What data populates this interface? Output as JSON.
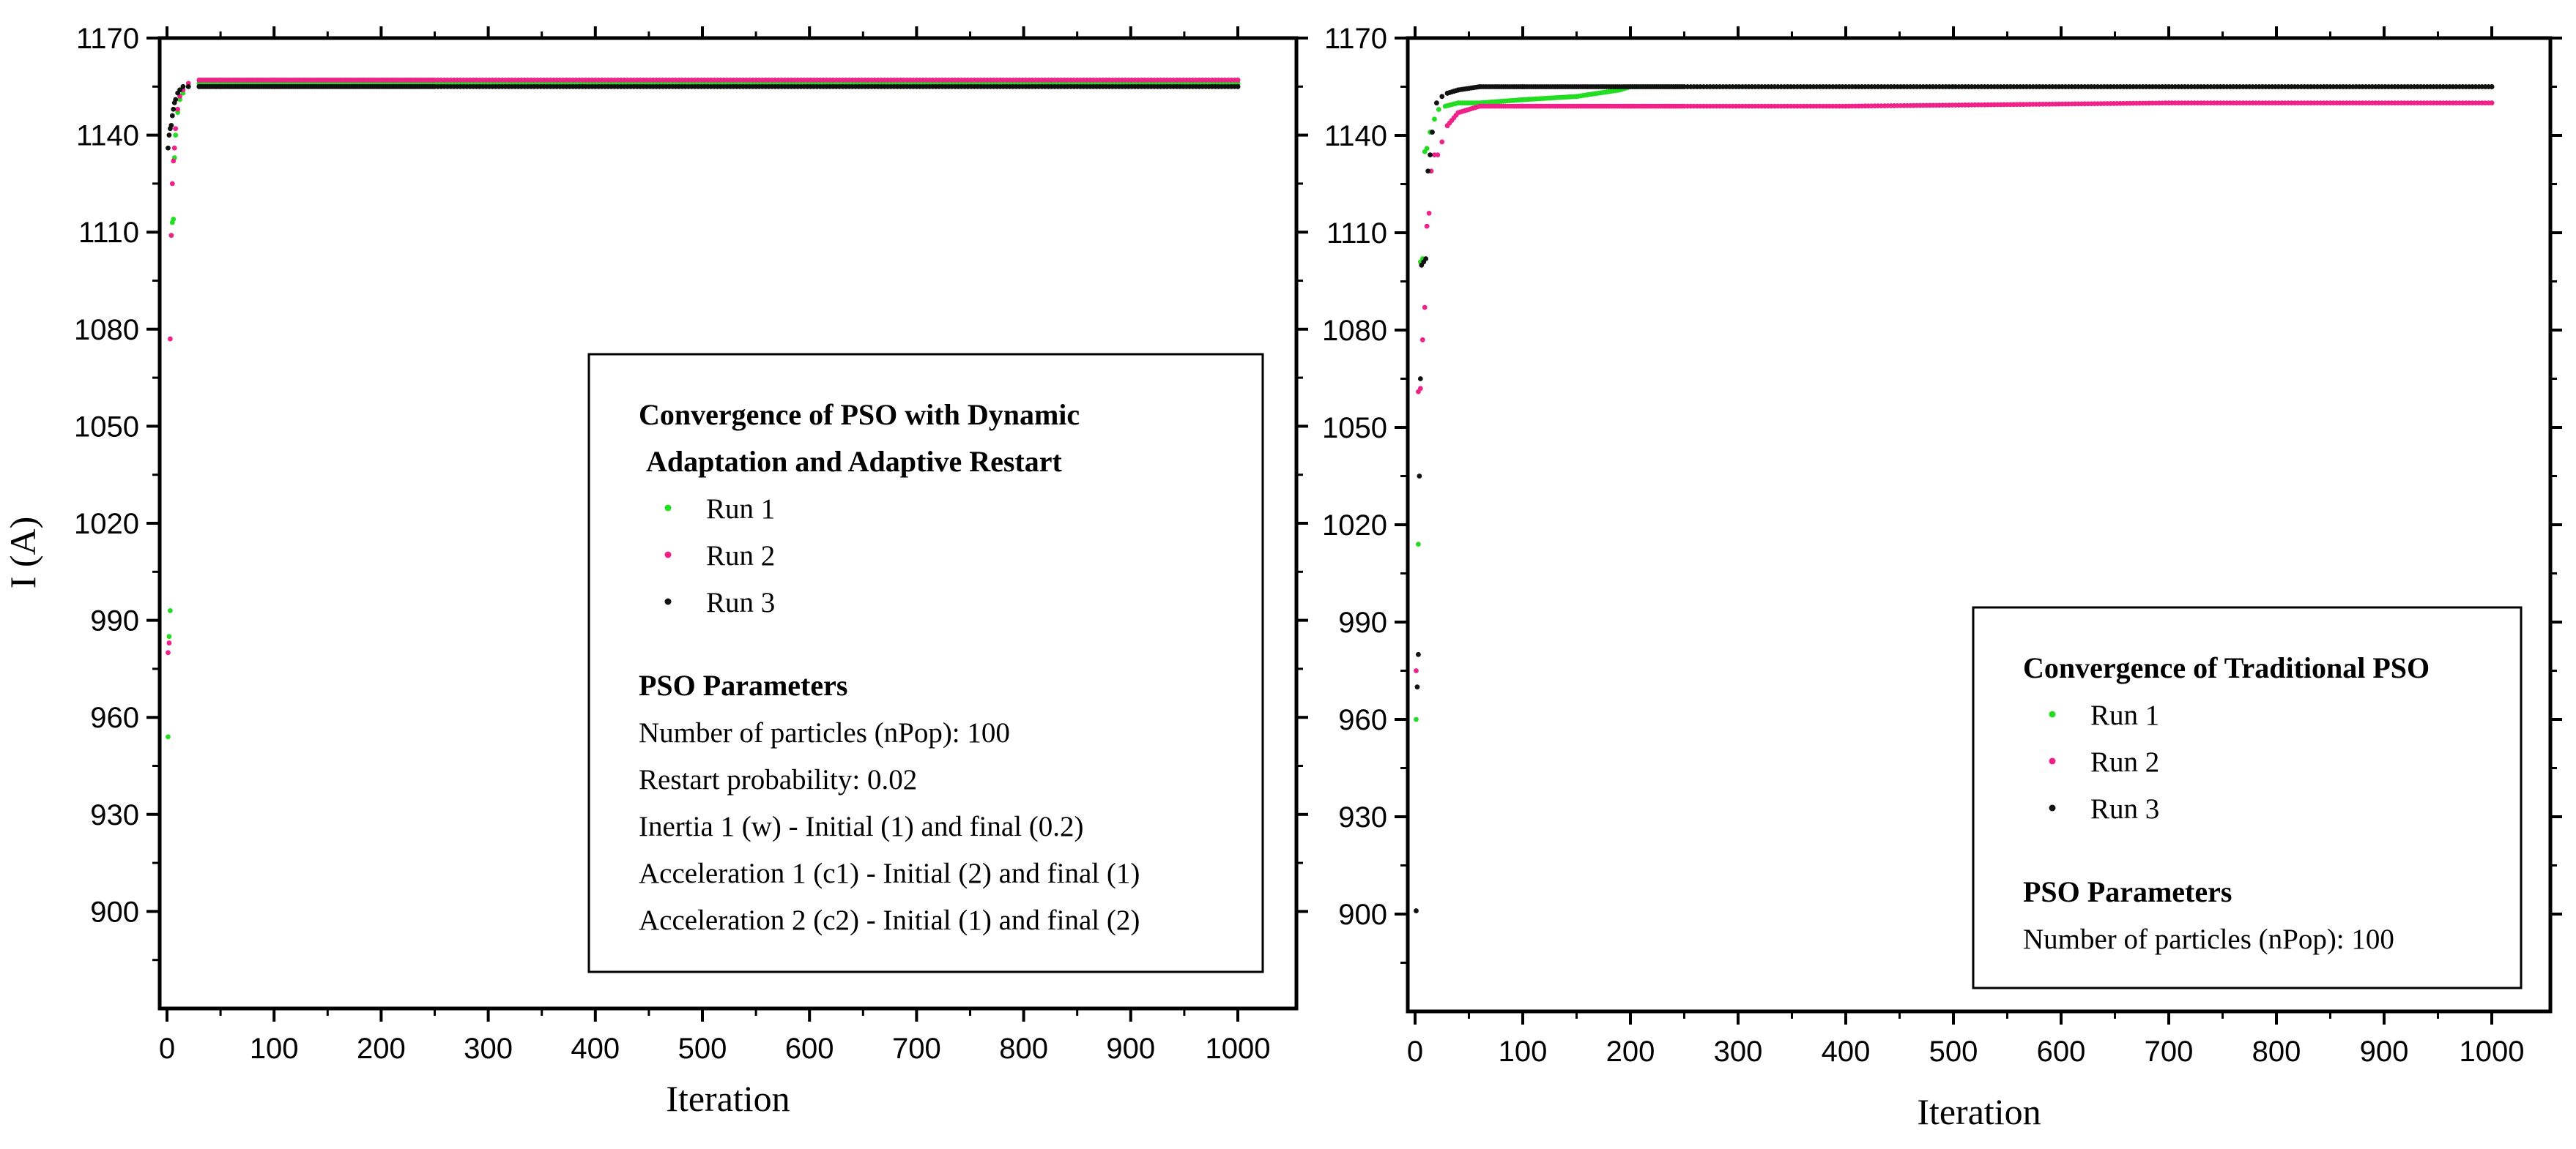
{
  "chart_data": [
    {
      "type": "scatter",
      "xlabel": "Iteration",
      "ylabel": "I (A)",
      "xlim": [
        0,
        1000
      ],
      "ylim": [
        870,
        1170
      ],
      "xticks": [
        "0",
        "100",
        "200",
        "300",
        "400",
        "500",
        "600",
        "700",
        "800",
        "900",
        "1000"
      ],
      "yticks": [
        "900",
        "930",
        "960",
        "990",
        "1020",
        "1050",
        "1080",
        "1110",
        "1140",
        "1170"
      ],
      "legend": {
        "title": [
          "Convergence of PSO with Dynamic",
          "Adaptation  and Adaptive Restart"
        ],
        "params_title": "PSO Parameters",
        "params": [
          "Number of particles (nPop): 100",
          "Restart probability: 0.02",
          "Inertia 1 (w) - Initial (1) and final (0.2)",
          "Acceleration 1 (c1) - Initial (2) and final (1)",
          "Acceleration 2 (c2) - Initial (1) and final (2)"
        ]
      },
      "series": [
        {
          "name": "Run 1",
          "color": "#22dd22",
          "x": [
            1,
            2,
            3,
            4,
            5,
            6,
            7,
            8,
            10,
            12,
            15,
            20,
            30,
            50,
            100,
            1000
          ],
          "y": [
            954,
            985,
            993,
            1109,
            1113,
            1114,
            1133,
            1140,
            1147,
            1151,
            1153,
            1155,
            1156,
            1156,
            1156,
            1156
          ]
        },
        {
          "name": "Run 2",
          "color": "#ee2288",
          "x": [
            1,
            2,
            3,
            4,
            5,
            6,
            7,
            8,
            10,
            12,
            15,
            20,
            30,
            50,
            100,
            1000
          ],
          "y": [
            980,
            983,
            1077,
            1109,
            1125,
            1132,
            1136,
            1142,
            1148,
            1152,
            1154,
            1156,
            1157,
            1157,
            1157,
            1157
          ]
        },
        {
          "name": "Run 3",
          "color": "#111111",
          "x": [
            1,
            2,
            3,
            4,
            5,
            6,
            7,
            8,
            10,
            12,
            15,
            20,
            30,
            50,
            100,
            1000
          ],
          "y": [
            1136,
            1140,
            1142,
            1143,
            1146,
            1148,
            1150,
            1151,
            1153,
            1154,
            1155,
            1155,
            1155,
            1155,
            1155,
            1155
          ]
        }
      ]
    },
    {
      "type": "scatter",
      "xlabel": "Iteration",
      "ylabel": "",
      "xlim": [
        0,
        1000
      ],
      "ylim": [
        870,
        1170
      ],
      "xticks": [
        "0",
        "100",
        "200",
        "300",
        "400",
        "500",
        "600",
        "700",
        "800",
        "900",
        "1000"
      ],
      "yticks": [
        "900",
        "930",
        "960",
        "990",
        "1020",
        "1050",
        "1080",
        "1110",
        "1140",
        "1170"
      ],
      "legend": {
        "title": [
          "Convergence of Traditional PSO"
        ],
        "params_title": "PSO Parameters",
        "params": [
          "Number of particles (nPop): 100"
        ]
      },
      "series": [
        {
          "name": "Run 1",
          "color": "#22dd22",
          "x": [
            1,
            3,
            5,
            7,
            9,
            11,
            14,
            18,
            22,
            28,
            40,
            60,
            100,
            150,
            190,
            200,
            300,
            500,
            1000
          ],
          "y": [
            960,
            1014,
            1101,
            1102,
            1135,
            1136,
            1141,
            1145,
            1148,
            1149,
            1150,
            1150,
            1151,
            1152,
            1154,
            1155,
            1155,
            1155,
            1155
          ]
        },
        {
          "name": "Run 2",
          "color": "#ee2288",
          "x": [
            1,
            3,
            5,
            7,
            9,
            11,
            13,
            15,
            18,
            21,
            25,
            30,
            40,
            60,
            100,
            200,
            400,
            700,
            1000
          ],
          "y": [
            975,
            1061,
            1062,
            1077,
            1087,
            1112,
            1116,
            1129,
            1134,
            1134,
            1138,
            1143,
            1147,
            1149,
            1149,
            1149,
            1149,
            1150,
            1150
          ]
        },
        {
          "name": "Run 3",
          "color": "#111111",
          "x": [
            1,
            2,
            3,
            4,
            5,
            6,
            8,
            10,
            12,
            14,
            16,
            20,
            25,
            30,
            40,
            60,
            100,
            1000
          ],
          "y": [
            901,
            970,
            980,
            1035,
            1065,
            1100,
            1101,
            1102,
            1129,
            1134,
            1141,
            1150,
            1152,
            1153,
            1154,
            1155,
            1155,
            1155
          ]
        }
      ]
    }
  ]
}
